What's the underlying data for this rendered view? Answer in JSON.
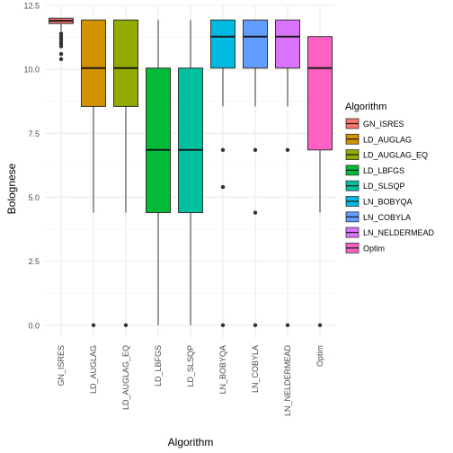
{
  "chart_data": {
    "type": "box",
    "xlabel": "Algorithm",
    "ylabel": "Bolognese",
    "ylim": [
      0,
      12.5
    ],
    "yticks": [
      "0.0",
      "2.5",
      "5.0",
      "7.5",
      "10.0",
      "12.5"
    ],
    "grid": true,
    "legend": {
      "title": "Algorithm",
      "position": "right"
    },
    "categories": [
      "GN_ISRES",
      "LD_AUGLAG",
      "LD_AUGLAG_EQ",
      "LD_LBFGS",
      "LD_SLSQP",
      "LN_BOBYQA",
      "LN_COBYLA",
      "LN_NELDERMEAD",
      "Optim"
    ],
    "series": [
      {
        "name": "GN_ISRES",
        "color": "#F8766D",
        "whisker_low": 11.5,
        "q1": 11.79,
        "median": 11.9,
        "q3": 12.0,
        "whisker_high": 12.0,
        "outliers": [
          11.4,
          11.3,
          11.2,
          11.1,
          11.0,
          10.9,
          10.6,
          10.4
        ]
      },
      {
        "name": "LD_AUGLAG",
        "color": "#D39200",
        "whisker_low": 4.4,
        "q1": 8.55,
        "median": 10.05,
        "q3": 11.93,
        "whisker_high": 11.93,
        "outliers": [
          0.0
        ]
      },
      {
        "name": "LD_AUGLAG_EQ",
        "color": "#93AA00",
        "whisker_low": 4.4,
        "q1": 8.55,
        "median": 10.05,
        "q3": 11.93,
        "whisker_high": 11.93,
        "outliers": [
          0.0
        ]
      },
      {
        "name": "LD_LBFGS",
        "color": "#00BA38",
        "whisker_low": 0.0,
        "q1": 4.4,
        "median": 6.85,
        "q3": 10.05,
        "whisker_high": 11.93,
        "outliers": []
      },
      {
        "name": "LD_SLSQP",
        "color": "#00C19F",
        "whisker_low": 0.0,
        "q1": 4.4,
        "median": 6.85,
        "q3": 10.05,
        "whisker_high": 11.93,
        "outliers": []
      },
      {
        "name": "LN_BOBYQA",
        "color": "#00B9E3",
        "whisker_low": 8.55,
        "q1": 10.05,
        "median": 11.28,
        "q3": 11.93,
        "whisker_high": 11.93,
        "outliers": [
          6.85,
          5.4,
          0.0
        ]
      },
      {
        "name": "LN_COBYLA",
        "color": "#619CFF",
        "whisker_low": 8.55,
        "q1": 10.05,
        "median": 11.28,
        "q3": 11.93,
        "whisker_high": 11.93,
        "outliers": [
          6.85,
          4.4,
          0.0
        ]
      },
      {
        "name": "LN_NELDERMEAD",
        "color": "#DB72FB",
        "whisker_low": 8.55,
        "q1": 10.05,
        "median": 11.28,
        "q3": 11.93,
        "whisker_high": 11.93,
        "outliers": [
          6.85,
          0.0
        ]
      },
      {
        "name": "Optim",
        "color": "#FF61C3",
        "whisker_low": 4.4,
        "q1": 6.85,
        "median": 10.05,
        "q3": 11.28,
        "whisker_high": 11.28,
        "outliers": [
          0.0
        ]
      }
    ]
  }
}
